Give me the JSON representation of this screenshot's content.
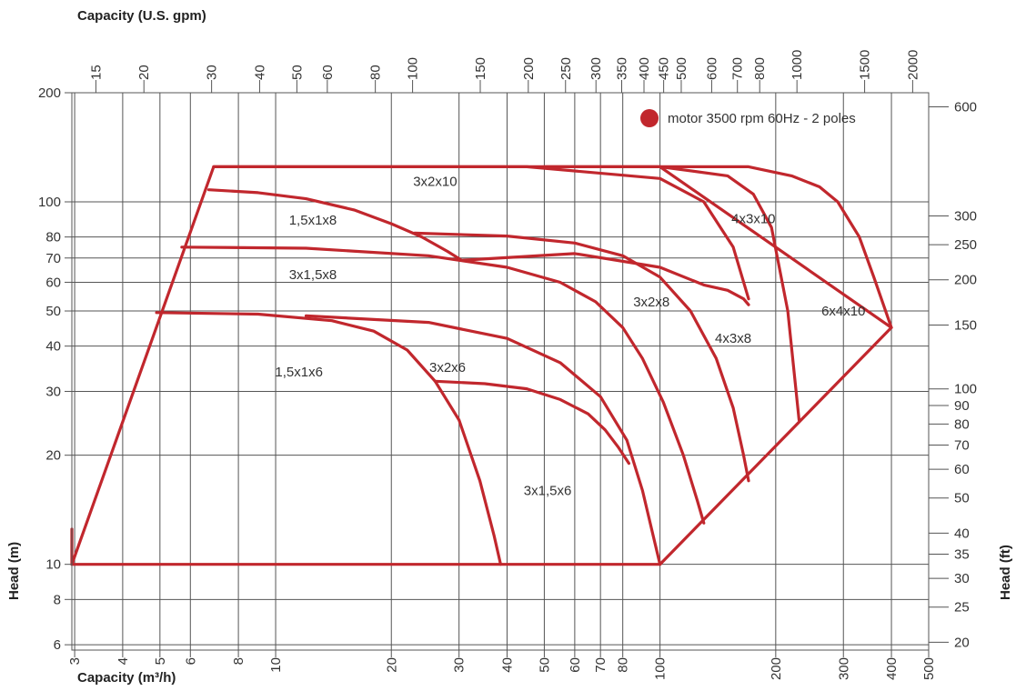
{
  "chart_data": {
    "type": "line",
    "title": "",
    "xlabel": "Capacity (m³/h)",
    "ylabel": "Head (m)",
    "x2label": "Capacity (U.S. gpm)",
    "y2label": "Head (ft)",
    "x_scale": "log",
    "y_scale": "log",
    "xlim": [
      2.95,
      500
    ],
    "ylim": [
      5.8,
      200
    ],
    "grid": true,
    "accent_color": "#c1272d",
    "x_ticks": [
      3,
      4,
      5,
      6,
      8,
      10,
      20,
      30,
      40,
      50,
      60,
      70,
      80,
      100,
      200,
      300,
      400,
      500
    ],
    "x_tick_labels": [
      "3",
      "4",
      "5",
      "6",
      "8",
      "10",
      "20",
      "30",
      "40",
      "50",
      "60",
      "70",
      "80",
      "100",
      "200",
      "300",
      "400",
      "500"
    ],
    "y_ticks": [
      6,
      8,
      10,
      20,
      30,
      40,
      50,
      60,
      70,
      80,
      100,
      200
    ],
    "y_tick_labels": [
      "6",
      "8",
      "10",
      "20",
      "30",
      "40",
      "50",
      "60",
      "70",
      "80",
      "100",
      "200"
    ],
    "x2_ticks": [
      15,
      20,
      30,
      40,
      50,
      60,
      80,
      100,
      150,
      200,
      250,
      300,
      350,
      400,
      450,
      500,
      600,
      700,
      800,
      1000,
      1500,
      2000
    ],
    "x2_tick_labels": [
      "15",
      "20",
      "30",
      "40",
      "50",
      "60",
      "80",
      "100",
      "150",
      "200",
      "250",
      "300",
      "350",
      "400",
      "450",
      "500",
      "600",
      "700",
      "800",
      "1000",
      "1500",
      "2000"
    ],
    "y2_ticks": [
      20,
      25,
      30,
      35,
      40,
      50,
      60,
      70,
      80,
      90,
      100,
      150,
      200,
      250,
      300,
      600
    ],
    "y2_tick_labels": [
      "20",
      "25",
      "30",
      "35",
      "40",
      "50",
      "60",
      "70",
      "80",
      "90",
      "100",
      "150",
      "200",
      "250",
      "300",
      "600"
    ],
    "legend": {
      "label": "motor 3500 rpm 60Hz - 2 poles",
      "position": "top-right"
    },
    "series": [
      {
        "name": "1,5x1x6",
        "x": [
          4.9,
          9,
          14,
          18,
          22,
          26,
          30,
          34,
          37,
          38.5
        ],
        "y": [
          49.5,
          49,
          47,
          44,
          39,
          32,
          25,
          17,
          12,
          10
        ]
      },
      {
        "name": "3x2x6",
        "x": [
          26,
          35,
          45,
          55,
          65,
          72,
          78,
          83
        ],
        "y": [
          32,
          31.5,
          30.5,
          28.5,
          26,
          23.5,
          21,
          19
        ]
      },
      {
        "name": "3x1,5x6",
        "x": [
          12,
          25,
          40,
          55,
          70,
          82,
          90,
          96,
          100
        ],
        "y": [
          48.5,
          46.5,
          42,
          36,
          29,
          22,
          16,
          12,
          10
        ]
      },
      {
        "name": "1,5x1x8",
        "x": [
          6.7,
          9,
          12,
          16,
          20,
          24,
          28,
          30.5
        ],
        "y": [
          108,
          106,
          102,
          95,
          87,
          80,
          73,
          69
        ]
      },
      {
        "name": "3x1,5x8",
        "x": [
          5.7,
          12,
          25,
          40,
          55,
          68,
          80,
          90,
          102,
          115,
          125,
          130
        ],
        "y": [
          75,
          74.5,
          71,
          66,
          60,
          53,
          45,
          37,
          28,
          20,
          15,
          13
        ]
      },
      {
        "name": "3x2x8",
        "x": [
          23,
          40,
          60,
          80,
          100,
          120,
          140,
          155,
          165,
          170
        ],
        "y": [
          82,
          80.5,
          77,
          71,
          62,
          50,
          37,
          27,
          20,
          17
        ]
      },
      {
        "name": "4x3x8",
        "x": [
          30.5,
          60,
          100,
          130,
          150,
          165,
          170
        ],
        "y": [
          69,
          72,
          66,
          59,
          57,
          54,
          52
        ]
      },
      {
        "name": "3x2x10",
        "x": [
          6.9,
          45,
          100,
          130,
          155,
          170
        ],
        "y": [
          125,
          125,
          116,
          100,
          75,
          54
        ]
      },
      {
        "name": "4x3x10",
        "x": [
          50,
          100,
          150,
          175,
          195,
          215,
          230
        ],
        "y": [
          125,
          125,
          118,
          105,
          85,
          50,
          25
        ]
      },
      {
        "name": "6x4x10",
        "x": [
          100,
          170,
          220,
          260,
          290,
          330,
          360,
          400
        ],
        "y": [
          125,
          125,
          118,
          110,
          100,
          80,
          62,
          45
        ]
      },
      {
        "name": "range boundary",
        "x": [
          2.95,
          2.95,
          6.9,
          100,
          100,
          400,
          400,
          100,
          2.95
        ],
        "y": [
          12.5,
          10,
          125,
          125,
          125,
          45,
          45,
          10,
          10
        ]
      }
    ],
    "annotations": [
      {
        "text": "3x2x10",
        "x": 26,
        "y": 114
      },
      {
        "text": "1,5x1x8",
        "x": 12.5,
        "y": 89
      },
      {
        "text": "4x3x10",
        "x": 175,
        "y": 90
      },
      {
        "text": "3x1,5x8",
        "x": 12.5,
        "y": 63
      },
      {
        "text": "3x2x8",
        "x": 95,
        "y": 53
      },
      {
        "text": "6x4x10",
        "x": 300,
        "y": 50
      },
      {
        "text": "4x3x8",
        "x": 155,
        "y": 42
      },
      {
        "text": "1,5x1x6",
        "x": 11.5,
        "y": 34
      },
      {
        "text": "3x2x6",
        "x": 28,
        "y": 35
      },
      {
        "text": "3x1,5x6",
        "x": 51,
        "y": 16
      }
    ]
  }
}
